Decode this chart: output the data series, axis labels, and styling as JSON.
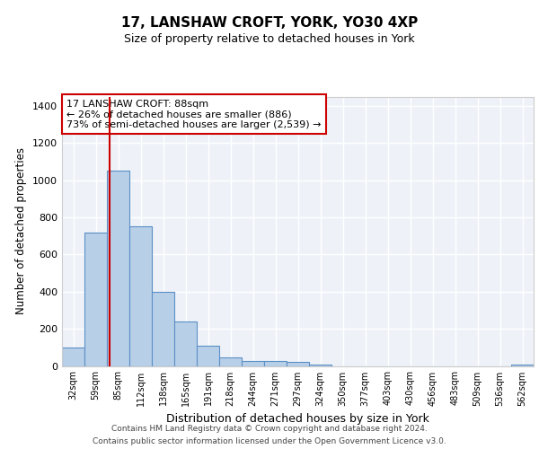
{
  "title": "17, LANSHAW CROFT, YORK, YO30 4XP",
  "subtitle": "Size of property relative to detached houses in York",
  "xlabel": "Distribution of detached houses by size in York",
  "ylabel": "Number of detached properties",
  "footer_line1": "Contains HM Land Registry data © Crown copyright and database right 2024.",
  "footer_line2": "Contains public sector information licensed under the Open Government Licence v3.0.",
  "categories": [
    "32sqm",
    "59sqm",
    "85sqm",
    "112sqm",
    "138sqm",
    "165sqm",
    "191sqm",
    "218sqm",
    "244sqm",
    "271sqm",
    "297sqm",
    "324sqm",
    "350sqm",
    "377sqm",
    "403sqm",
    "430sqm",
    "456sqm",
    "483sqm",
    "509sqm",
    "536sqm",
    "562sqm"
  ],
  "values": [
    100,
    720,
    1050,
    750,
    400,
    240,
    110,
    45,
    25,
    25,
    20,
    5,
    0,
    0,
    0,
    0,
    0,
    0,
    0,
    0,
    5
  ],
  "bar_color": "#b8cfe8",
  "bar_edge_color": "#5b8fc5",
  "ylim": [
    0,
    1450
  ],
  "yticks": [
    0,
    200,
    400,
    600,
    800,
    1000,
    1200,
    1400
  ],
  "property_line_color": "#cc0000",
  "annotation_title": "17 LANSHAW CROFT: 88sqm",
  "annotation_line1": "← 26% of detached houses are smaller (886)",
  "annotation_line2": "73% of semi-detached houses are larger (2,539) →",
  "annotation_box_color": "#cc0000",
  "background_color": "#eef2f8",
  "grid_color": "#ffffff",
  "title_fontsize": 11,
  "subtitle_fontsize": 9
}
